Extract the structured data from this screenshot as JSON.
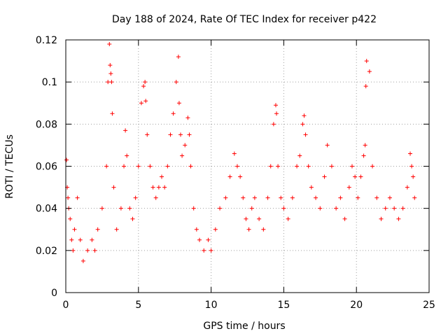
{
  "chart_data": {
    "type": "scatter",
    "title": "Day 188 of 2024, Rate Of TEC Index for receiver p422",
    "xlabel": "GPS time / hours",
    "ylabel": "ROTI / TECUs",
    "xlim": [
      0,
      25
    ],
    "ylim": [
      0,
      0.12
    ],
    "xticks": [
      0,
      5,
      10,
      15,
      20,
      25
    ],
    "xtick_labels": [
      "0",
      "5",
      "10",
      "15",
      "20",
      "25"
    ],
    "yticks": [
      0,
      0.02,
      0.04,
      0.06,
      0.08,
      0.1,
      0.12
    ],
    "ytick_labels": [
      "0",
      "0.02",
      "0.04",
      "0.06",
      "0.08",
      "0.1",
      "0.12"
    ],
    "grid": true,
    "marker": "plus",
    "series": [
      {
        "name": "ROTI",
        "color": "#ff0000",
        "x": [
          0.05,
          0.1,
          0.15,
          0.2,
          0.3,
          0.4,
          0.5,
          0.6,
          0.8,
          1.0,
          1.2,
          1.5,
          1.8,
          2.0,
          2.2,
          2.5,
          2.8,
          2.9,
          3.0,
          3.05,
          3.1,
          3.15,
          3.2,
          3.3,
          3.5,
          3.8,
          4.0,
          4.1,
          4.2,
          4.4,
          4.6,
          4.8,
          5.0,
          5.2,
          5.35,
          5.45,
          5.5,
          5.6,
          5.8,
          6.0,
          6.2,
          6.4,
          6.6,
          6.8,
          7.0,
          7.2,
          7.4,
          7.6,
          7.75,
          7.8,
          7.9,
          8.0,
          8.2,
          8.4,
          8.5,
          8.6,
          8.8,
          9.0,
          9.2,
          9.5,
          9.8,
          10.0,
          10.3,
          10.6,
          11.0,
          11.3,
          11.6,
          11.8,
          12.0,
          12.2,
          12.4,
          12.6,
          12.8,
          13.0,
          13.3,
          13.6,
          13.9,
          14.1,
          14.3,
          14.45,
          14.5,
          14.6,
          14.8,
          15.0,
          15.3,
          15.6,
          15.9,
          16.1,
          16.3,
          16.4,
          16.5,
          16.7,
          16.9,
          17.2,
          17.5,
          17.8,
          18.0,
          18.3,
          18.6,
          18.9,
          19.2,
          19.5,
          19.7,
          19.9,
          20.1,
          20.3,
          20.5,
          20.6,
          20.65,
          20.7,
          20.9,
          21.1,
          21.4,
          21.7,
          22.0,
          22.3,
          22.6,
          22.9,
          23.2,
          23.5,
          23.7,
          23.8,
          23.9,
          24.0
        ],
        "y": [
          0.063,
          0.05,
          0.045,
          0.04,
          0.035,
          0.025,
          0.02,
          0.03,
          0.045,
          0.025,
          0.015,
          0.02,
          0.025,
          0.02,
          0.03,
          0.04,
          0.06,
          0.1,
          0.118,
          0.108,
          0.104,
          0.1,
          0.085,
          0.05,
          0.03,
          0.04,
          0.06,
          0.077,
          0.065,
          0.04,
          0.035,
          0.045,
          0.06,
          0.09,
          0.098,
          0.1,
          0.091,
          0.075,
          0.06,
          0.05,
          0.045,
          0.05,
          0.055,
          0.05,
          0.06,
          0.075,
          0.085,
          0.1,
          0.112,
          0.09,
          0.075,
          0.065,
          0.07,
          0.083,
          0.075,
          0.06,
          0.04,
          0.03,
          0.025,
          0.02,
          0.025,
          0.02,
          0.03,
          0.04,
          0.045,
          0.055,
          0.066,
          0.06,
          0.055,
          0.045,
          0.035,
          0.03,
          0.04,
          0.045,
          0.035,
          0.03,
          0.045,
          0.06,
          0.08,
          0.089,
          0.085,
          0.06,
          0.045,
          0.04,
          0.035,
          0.045,
          0.06,
          0.065,
          0.08,
          0.084,
          0.075,
          0.06,
          0.05,
          0.045,
          0.04,
          0.055,
          0.07,
          0.06,
          0.04,
          0.045,
          0.035,
          0.05,
          0.06,
          0.055,
          0.045,
          0.055,
          0.065,
          0.07,
          0.098,
          0.11,
          0.105,
          0.06,
          0.045,
          0.035,
          0.04,
          0.045,
          0.04,
          0.035,
          0.04,
          0.05,
          0.066,
          0.06,
          0.055,
          0.045
        ]
      }
    ]
  }
}
